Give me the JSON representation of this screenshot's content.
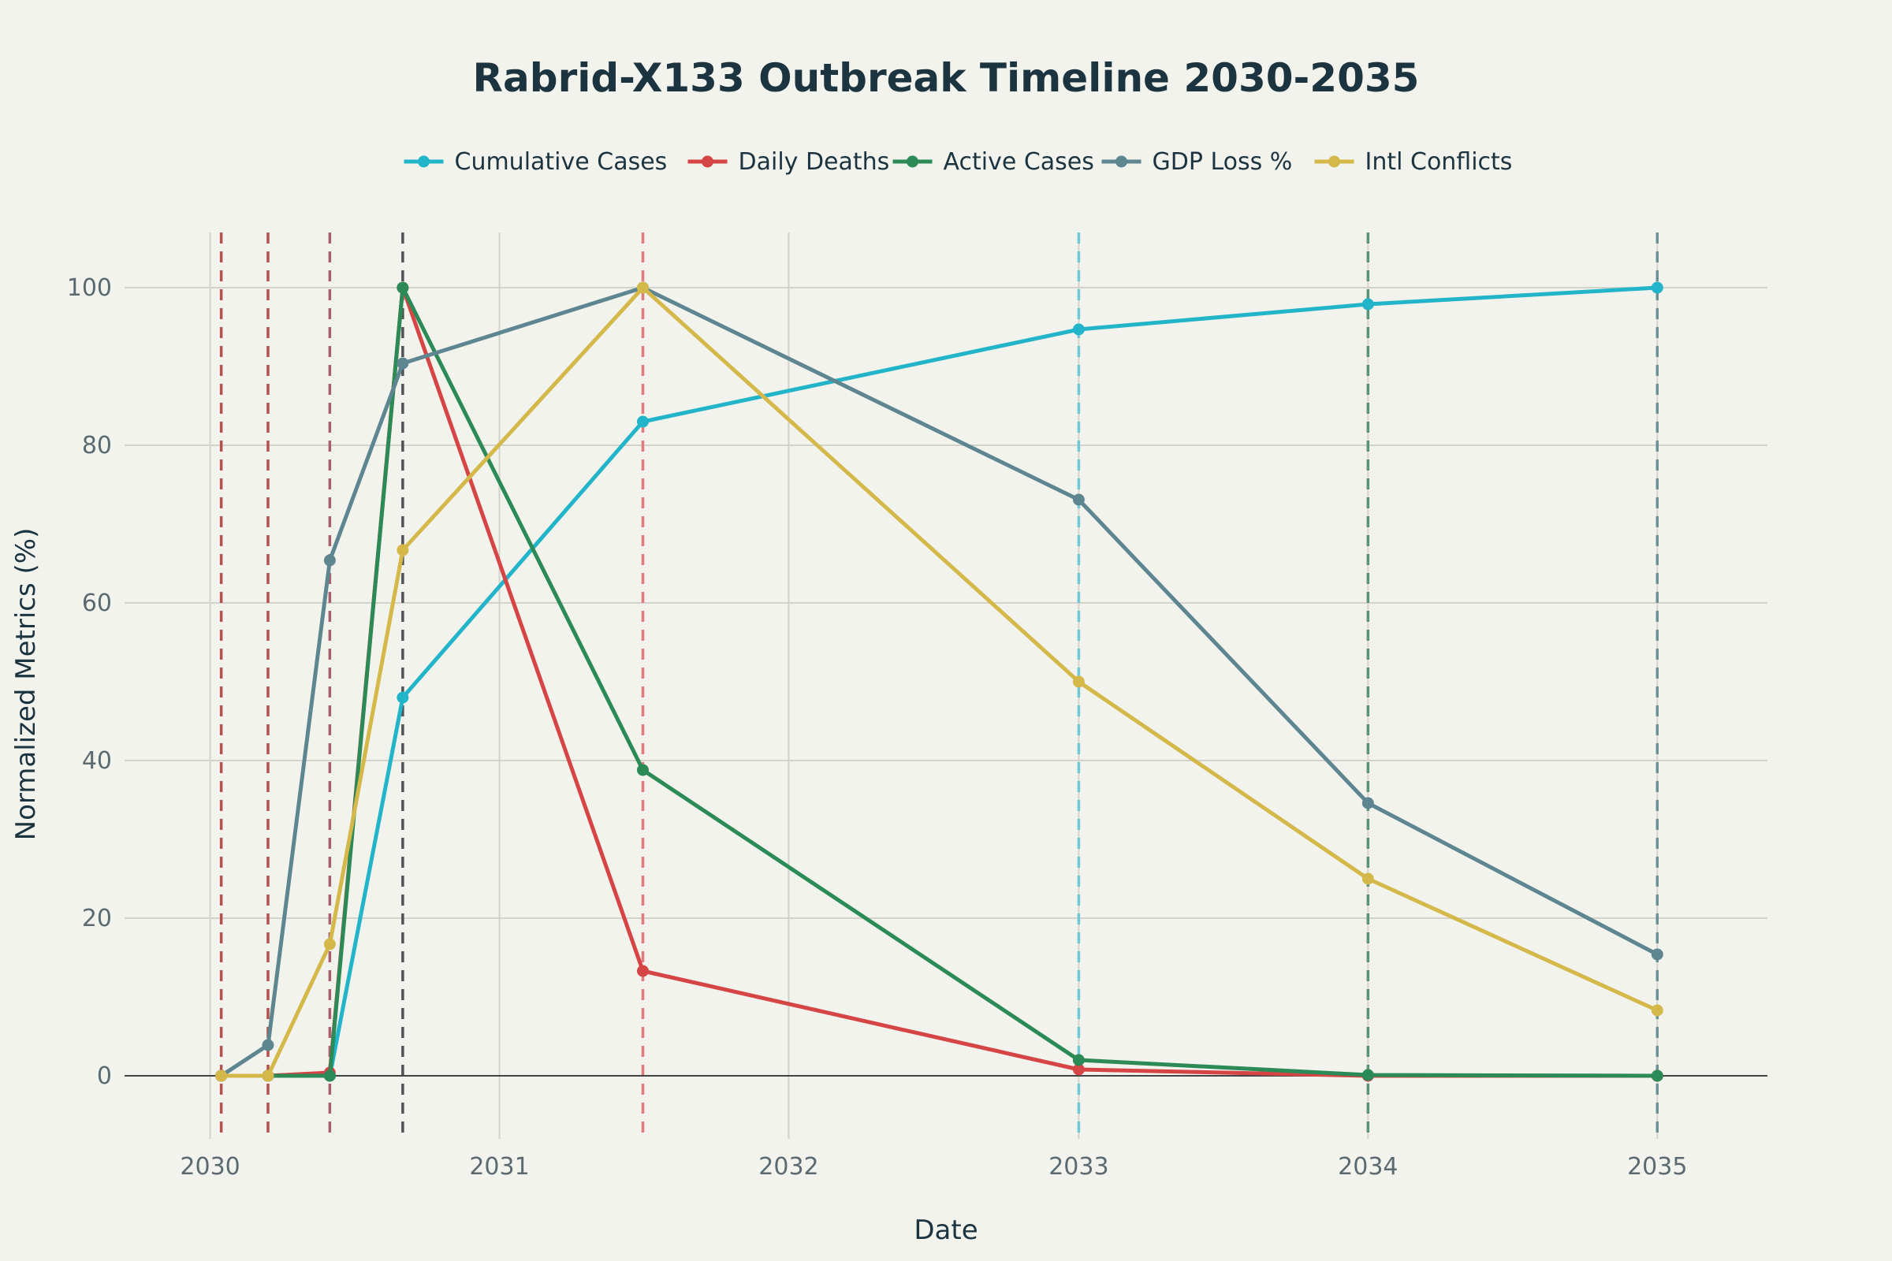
{
  "chart_data": {
    "type": "line",
    "title": "Rabrid-X133 Outbreak Timeline 2030-2035",
    "xlabel": "Date",
    "ylabel": "Normalized Metrics (%)",
    "x": [
      "2030-01-15",
      "2030-03-15",
      "2030-06-01",
      "2030-09-01",
      "2031-07-01",
      "2033-01-01",
      "2034-01-01",
      "2035-01-01"
    ],
    "xlim": [
      "2029-09-15",
      "2035-05-20"
    ],
    "ylim": [
      -8,
      107
    ],
    "x_ticks": [
      {
        "label": "2030",
        "date": "2030-01-01"
      },
      {
        "label": "2031",
        "date": "2031-01-01"
      },
      {
        "label": "2032",
        "date": "2032-01-01"
      },
      {
        "label": "2033",
        "date": "2033-01-01"
      },
      {
        "label": "2034",
        "date": "2034-01-01"
      },
      {
        "label": "2035",
        "date": "2035-01-01"
      }
    ],
    "y_ticks": [
      0,
      20,
      40,
      60,
      80,
      100
    ],
    "grid": true,
    "legend_position": "top-center",
    "series": [
      {
        "name": "Cumulative Cases",
        "color": "#22b4c8",
        "values": [
          0,
          0,
          0,
          48,
          83,
          94.7,
          97.9,
          100
        ]
      },
      {
        "name": "Daily Deaths",
        "color": "#d64545",
        "values": [
          0,
          0,
          0.4,
          100,
          13.3,
          0.8,
          0,
          0
        ]
      },
      {
        "name": "Active Cases",
        "color": "#2b8a55",
        "values": [
          0,
          0,
          0,
          100,
          38.8,
          2,
          0.1,
          0
        ]
      },
      {
        "name": "GDP Loss %",
        "color": "#5e8690",
        "values": [
          0,
          3.9,
          65.4,
          90.4,
          100,
          73.1,
          34.6,
          15.4
        ]
      },
      {
        "name": "Intl Conflicts",
        "color": "#d4b94a",
        "values": [
          0,
          0,
          16.7,
          66.7,
          100,
          50,
          25,
          8.3
        ]
      }
    ],
    "event_lines": [
      {
        "date": "2030-01-15",
        "color": "#b5504d"
      },
      {
        "date": "2030-03-15",
        "color": "#b5504d"
      },
      {
        "date": "2030-06-01",
        "color": "#a9606e"
      },
      {
        "date": "2030-09-01",
        "color": "#4f5257"
      },
      {
        "date": "2031-07-01",
        "color": "#e07b7b"
      },
      {
        "date": "2033-01-01",
        "color": "#6fc8d4"
      },
      {
        "date": "2034-01-01",
        "color": "#5b9278"
      },
      {
        "date": "2035-01-01",
        "color": "#6e9197"
      }
    ]
  }
}
